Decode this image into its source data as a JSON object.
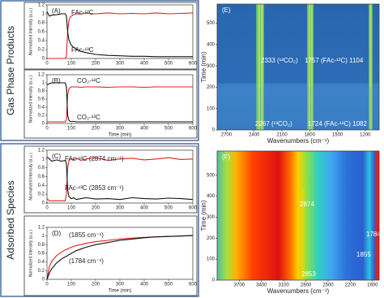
{
  "panel_groups": [
    "Gas Phase Products",
    "Adsorbed Species"
  ],
  "chart_data": [
    {
      "type": "line",
      "title": "(A)",
      "ylabel": "Normalized Intensity (a.u.)",
      "x": [
        0,
        10,
        20,
        40,
        60,
        75,
        80,
        85,
        90,
        95,
        100,
        110,
        120,
        140,
        160,
        200,
        250,
        300,
        350,
        400,
        450,
        500,
        550,
        600
      ],
      "series": [
        {
          "name": "FAc-¹²C",
          "color": "#e0201c",
          "values": [
            0,
            0,
            0,
            0,
            0,
            0,
            0.05,
            0.6,
            0.85,
            0.92,
            0.95,
            0.98,
            1.0,
            1.0,
            1.01,
            1.0,
            1.02,
            1.0,
            1.01,
            1.0,
            1.02,
            1.0,
            1.01,
            1.02
          ]
        },
        {
          "name": "FAc-¹³C",
          "color": "#111111",
          "values": [
            1.05,
            0.95,
            0.97,
            0.98,
            1.0,
            1.0,
            0.95,
            0.6,
            0.42,
            0.35,
            0.3,
            0.25,
            0.21,
            0.16,
            0.13,
            0.09,
            0.07,
            0.06,
            0.05,
            0.05,
            0.04,
            0.04,
            0.04,
            0.04
          ]
        }
      ],
      "xlim": [
        0,
        600
      ],
      "xticks": [
        0,
        100,
        200,
        300,
        400,
        500,
        600
      ],
      "ylim": [
        0,
        1.2
      ],
      "yticks": [
        0,
        0.2,
        0.4,
        0.6,
        0.8,
        1,
        1.2
      ]
    },
    {
      "type": "line",
      "title": "(B)",
      "xlabel": "Time (min)",
      "ylabel": "Normalized Intensity (a.u.)",
      "x": [
        0,
        10,
        20,
        40,
        60,
        75,
        80,
        85,
        90,
        95,
        100,
        110,
        120,
        140,
        160,
        200,
        250,
        300,
        350,
        400,
        450,
        500,
        550,
        600
      ],
      "series": [
        {
          "name": "CO₂-¹²C",
          "color": "#e0201c",
          "values": [
            0.04,
            0.04,
            0.04,
            0.04,
            0.04,
            0.04,
            0.1,
            0.7,
            0.85,
            0.88,
            0.9,
            0.9,
            0.9,
            0.89,
            0.9,
            0.9,
            0.89,
            0.9,
            0.9,
            0.89,
            0.9,
            0.9,
            0.9,
            0.9
          ]
        },
        {
          "name": "CO₂-¹³C",
          "color": "#111111",
          "values": [
            0.95,
            0.98,
            1.0,
            1.0,
            1.0,
            1.0,
            0.9,
            0.2,
            0.08,
            0.05,
            0.05,
            0.05,
            0.04,
            0.04,
            0.04,
            0.04,
            0.04,
            0.04,
            0.04,
            0.04,
            0.04,
            0.04,
            0.04,
            0.04
          ]
        }
      ],
      "xlim": [
        0,
        600
      ],
      "xticks": [
        0,
        100,
        200,
        300,
        400,
        500,
        600
      ],
      "ylim": [
        0,
        1.2
      ],
      "yticks": [
        0,
        0.2,
        0.4,
        0.6,
        0.8,
        1,
        1.2
      ]
    },
    {
      "type": "line",
      "title": "(C)",
      "ylabel": "Normalized Intensity (a.u.)",
      "x": [
        0,
        10,
        20,
        40,
        60,
        75,
        80,
        85,
        90,
        95,
        100,
        110,
        120,
        140,
        160,
        200,
        250,
        300,
        350,
        400,
        450,
        500,
        550,
        600
      ],
      "series": [
        {
          "name": "FAc-¹²C (2874 cm⁻¹)",
          "color": "#e0201c",
          "values": [
            0.1,
            0.05,
            0.05,
            0.05,
            0.05,
            0.05,
            0.2,
            0.8,
            0.95,
            1.0,
            1.0,
            0.98,
            1.02,
            0.97,
            1.0,
            1.03,
            0.97,
            1.0,
            1.02,
            0.98,
            1.0,
            1.03,
            0.99,
            1.0
          ]
        },
        {
          "name": "FAc-¹³C (2853 cm⁻¹)",
          "color": "#111111",
          "values": [
            1.05,
            1.0,
            0.95,
            0.98,
            0.95,
            0.97,
            0.9,
            0.3,
            0.15,
            0.12,
            0.1,
            0.12,
            0.08,
            0.1,
            0.12,
            0.09,
            0.1,
            0.08,
            0.12,
            0.1,
            0.09,
            0.11,
            0.1,
            0.08
          ]
        }
      ],
      "xlim": [
        0,
        600
      ],
      "xticks": [
        0,
        100,
        200,
        300,
        400,
        500,
        600
      ],
      "ylim": [
        0,
        1.2
      ],
      "yticks": [
        0,
        0.2,
        0.4,
        0.6,
        0.8,
        1,
        1.2
      ]
    },
    {
      "type": "line",
      "title": "(D)",
      "xlabel": "Time (min)",
      "ylabel": "Normalized Intensity (a.u.)",
      "x": [
        0,
        10,
        20,
        40,
        60,
        75,
        80,
        85,
        90,
        95,
        100,
        110,
        120,
        140,
        160,
        200,
        250,
        300,
        350,
        400,
        450,
        500,
        550,
        600
      ],
      "series": [
        {
          "name": "(1855 cm⁻¹)",
          "color": "#e0201c",
          "values": [
            0,
            0.3,
            0.42,
            0.55,
            0.63,
            0.68,
            0.69,
            0.7,
            0.72,
            0.73,
            0.74,
            0.76,
            0.78,
            0.8,
            0.83,
            0.87,
            0.9,
            0.93,
            0.95,
            0.97,
            0.98,
            0.99,
            1.0,
            1.01
          ]
        },
        {
          "name": "(1784 cm⁻¹)",
          "color": "#111111",
          "values": [
            0,
            0.15,
            0.25,
            0.38,
            0.47,
            0.52,
            0.53,
            0.55,
            0.57,
            0.58,
            0.6,
            0.63,
            0.66,
            0.7,
            0.74,
            0.8,
            0.85,
            0.9,
            0.93,
            0.96,
            0.98,
            0.99,
            1.0,
            1.01
          ]
        }
      ],
      "xlim": [
        0,
        600
      ],
      "xticks": [
        0,
        100,
        200,
        300,
        400,
        500,
        600
      ],
      "ylim": [
        0,
        1.2
      ],
      "yticks": [
        0,
        0.2,
        0.4,
        0.6,
        0.8,
        1,
        1.2
      ]
    },
    {
      "type": "heatmap",
      "title": "(E)",
      "xlabel": "Wavenumbers (cm⁻¹)",
      "ylabel": "Time (min)",
      "xlim": [
        2800,
        1050
      ],
      "xticks": [
        2700,
        2400,
        2100,
        1800,
        1500,
        1200
      ],
      "ylim": [
        0,
        590
      ],
      "yticks": [
        0,
        100,
        200,
        300,
        400,
        500
      ],
      "annotations": [
        "2333 (¹²CO₂)",
        "1757 (FAc-¹²C) 1104",
        "2267 (¹³CO₂)",
        "1724 (FAc-¹³C) 1082"
      ]
    },
    {
      "type": "heatmap",
      "title": "(F)",
      "xlabel": "Wavenumbers (cm⁻¹)",
      "ylabel": "Time (min)",
      "xlim": [
        4000,
        1810
      ],
      "xticks": [
        3700,
        3400,
        3100,
        2800,
        2500,
        2200,
        1900
      ],
      "ylim": [
        0,
        615
      ],
      "yticks": [
        0,
        100,
        200,
        300,
        400,
        500
      ],
      "annotations": [
        "2874",
        "2853",
        "1784",
        "1855"
      ]
    }
  ]
}
